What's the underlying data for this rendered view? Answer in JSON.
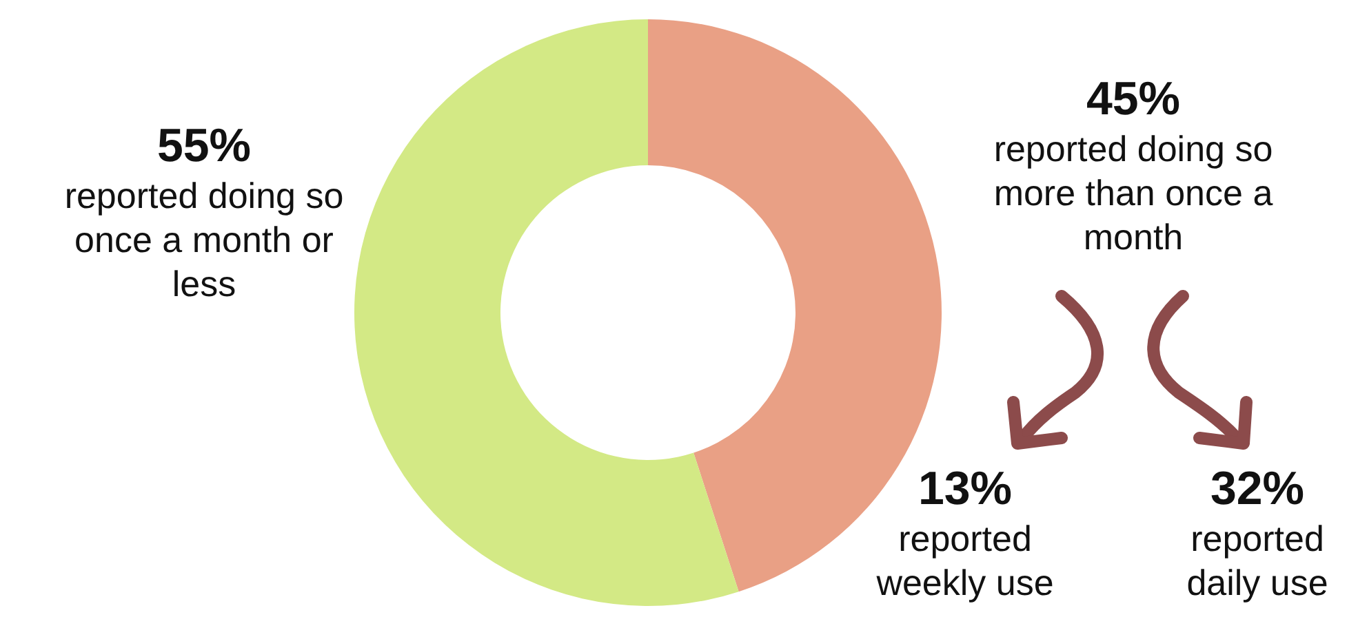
{
  "chart_data": {
    "type": "donut",
    "categories": [
      "reported doing so more than once a month",
      "reported doing so once a month or less"
    ],
    "values": [
      45,
      55
    ],
    "colors": [
      "#e9a085",
      "#d3e985"
    ],
    "value_labels": [
      "45%",
      "55%"
    ],
    "annotations": [
      "13%",
      "reported weekly use",
      "32%",
      "reported daily use"
    ]
  }
}
